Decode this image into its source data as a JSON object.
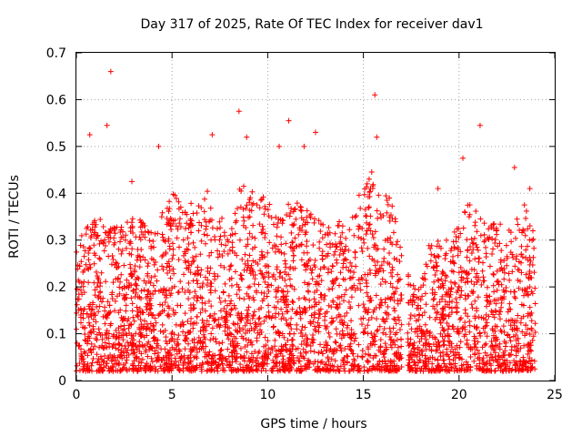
{
  "chart_data": {
    "type": "scatter",
    "title": "Day 317 of 2025, Rate Of TEC Index for receiver dav1",
    "xlabel": "GPS time / hours",
    "ylabel": "ROTI / TECUs",
    "xlim": [
      0,
      25
    ],
    "ylim": [
      0,
      0.7
    ],
    "xticks": [
      0,
      5,
      10,
      15,
      20,
      25
    ],
    "yticks": [
      0,
      0.1,
      0.2,
      0.3,
      0.4,
      0.5,
      0.6,
      0.7
    ],
    "xtick_labels": [
      "0",
      "5",
      "10",
      "15",
      "20",
      "25"
    ],
    "ytick_labels": [
      "0",
      "0.1",
      "0.2",
      "0.3",
      "0.4",
      "0.5",
      "0.6",
      "0.7"
    ],
    "grid": true,
    "marker": "plus",
    "color": "#ff0000",
    "data_gap_hours": [
      17.0,
      17.3
    ],
    "notable_points": [
      {
        "x": 1.8,
        "y": 0.66
      },
      {
        "x": 15.6,
        "y": 0.61
      },
      {
        "x": 8.5,
        "y": 0.575
      },
      {
        "x": 11.1,
        "y": 0.555
      },
      {
        "x": 1.6,
        "y": 0.545
      },
      {
        "x": 21.1,
        "y": 0.545
      },
      {
        "x": 12.5,
        "y": 0.53
      },
      {
        "x": 0.7,
        "y": 0.525
      },
      {
        "x": 7.1,
        "y": 0.525
      },
      {
        "x": 8.9,
        "y": 0.52
      },
      {
        "x": 15.7,
        "y": 0.52
      },
      {
        "x": 4.3,
        "y": 0.5
      },
      {
        "x": 10.6,
        "y": 0.5
      },
      {
        "x": 11.9,
        "y": 0.5
      },
      {
        "x": 20.2,
        "y": 0.475
      },
      {
        "x": 2.9,
        "y": 0.425
      },
      {
        "x": 22.9,
        "y": 0.455
      },
      {
        "x": 18.9,
        "y": 0.41
      },
      {
        "x": 23.7,
        "y": 0.41
      }
    ],
    "activity_envelope": [
      {
        "x": 0.0,
        "max": 0.3
      },
      {
        "x": 1.0,
        "max": 0.35
      },
      {
        "x": 2.0,
        "max": 0.33
      },
      {
        "x": 3.0,
        "max": 0.35
      },
      {
        "x": 4.0,
        "max": 0.33
      },
      {
        "x": 5.0,
        "max": 0.4
      },
      {
        "x": 6.0,
        "max": 0.38
      },
      {
        "x": 7.0,
        "max": 0.42
      },
      {
        "x": 8.0,
        "max": 0.3
      },
      {
        "x": 8.5,
        "max": 0.42
      },
      {
        "x": 9.5,
        "max": 0.4
      },
      {
        "x": 10.5,
        "max": 0.38
      },
      {
        "x": 11.5,
        "max": 0.38
      },
      {
        "x": 12.5,
        "max": 0.36
      },
      {
        "x": 13.5,
        "max": 0.33
      },
      {
        "x": 14.5,
        "max": 0.38
      },
      {
        "x": 15.5,
        "max": 0.45
      },
      {
        "x": 16.5,
        "max": 0.38
      },
      {
        "x": 17.5,
        "max": 0.2
      },
      {
        "x": 18.5,
        "max": 0.3
      },
      {
        "x": 19.5,
        "max": 0.3
      },
      {
        "x": 20.5,
        "max": 0.38
      },
      {
        "x": 21.5,
        "max": 0.35
      },
      {
        "x": 22.5,
        "max": 0.33
      },
      {
        "x": 23.5,
        "max": 0.38
      },
      {
        "x": 24.0,
        "max": 0.3
      }
    ],
    "x_data_range": [
      0.0,
      24.0
    ],
    "y_floor": 0.02
  }
}
